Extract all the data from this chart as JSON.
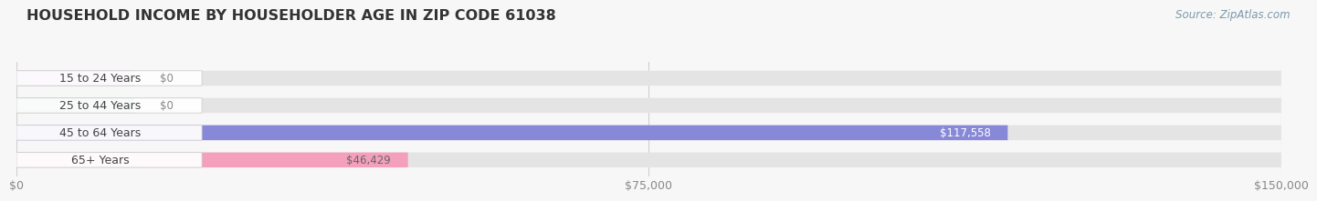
{
  "title": "HOUSEHOLD INCOME BY HOUSEHOLDER AGE IN ZIP CODE 61038",
  "source": "Source: ZipAtlas.com",
  "categories": [
    "15 to 24 Years",
    "25 to 44 Years",
    "45 to 64 Years",
    "65+ Years"
  ],
  "values": [
    0,
    0,
    117558,
    46429
  ],
  "bar_colors": [
    "#cca0c8",
    "#72c8be",
    "#8888d8",
    "#f4a0bc"
  ],
  "value_labels": [
    "$0",
    "$0",
    "$117,558",
    "$46,429"
  ],
  "value_label_colors": [
    "#666666",
    "#666666",
    "#ffffff",
    "#666666"
  ],
  "xlim": [
    0,
    150000
  ],
  "xtick_values": [
    0,
    75000,
    150000
  ],
  "xtick_labels": [
    "$0",
    "$75,000",
    "$150,000"
  ],
  "background_color": "#f7f7f7",
  "bar_bg_color": "#e4e4e4",
  "title_color": "#333333",
  "source_color": "#7a9aaa",
  "label_color": "#444444",
  "title_fontsize": 11.5,
  "tick_fontsize": 9,
  "cat_fontsize": 9,
  "val_fontsize": 8.5
}
